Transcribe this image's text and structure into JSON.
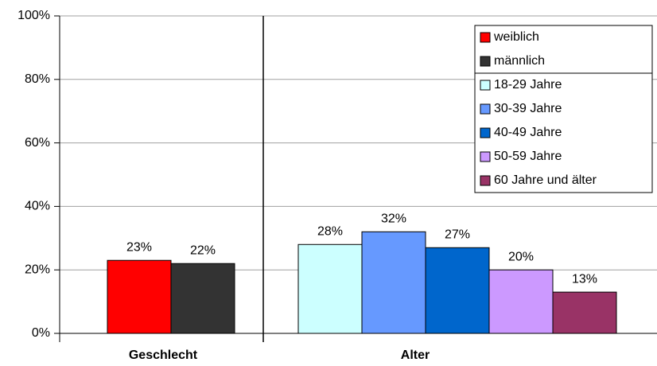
{
  "chart_data": {
    "type": "bar",
    "categories": [
      "Geschlecht",
      "Alter"
    ],
    "series": [
      {
        "name": "weiblich",
        "color": "#ff0000",
        "values": [
          23,
          null
        ],
        "value_labels": [
          "23%",
          null
        ]
      },
      {
        "name": "männlich",
        "color": "#333333",
        "values": [
          22,
          null
        ],
        "value_labels": [
          "22%",
          null
        ]
      },
      {
        "name": "18-29 Jahre",
        "color": "#ccffff",
        "values": [
          null,
          28
        ],
        "value_labels": [
          null,
          "28%"
        ]
      },
      {
        "name": "30-39 Jahre",
        "color": "#6699ff",
        "values": [
          null,
          32
        ],
        "value_labels": [
          null,
          "32%"
        ]
      },
      {
        "name": "40-49 Jahre",
        "color": "#0066cc",
        "values": [
          null,
          27
        ],
        "value_labels": [
          null,
          "27%"
        ]
      },
      {
        "name": "50-59 Jahre",
        "color": "#cc99ff",
        "values": [
          null,
          20
        ],
        "value_labels": [
          null,
          "20%"
        ]
      },
      {
        "name": "60 Jahre und älter",
        "color": "#993366",
        "values": [
          null,
          13
        ],
        "value_labels": [
          null,
          "13%"
        ]
      }
    ],
    "ylim": [
      0,
      100
    ],
    "yticks": [
      {
        "value": 0,
        "label": "0%"
      },
      {
        "value": 20,
        "label": "20%"
      },
      {
        "value": 40,
        "label": "40%"
      },
      {
        "value": 60,
        "label": "60%"
      },
      {
        "value": 80,
        "label": "80%"
      },
      {
        "value": 100,
        "label": "100%"
      }
    ],
    "grid": true,
    "legend": "top-right"
  }
}
